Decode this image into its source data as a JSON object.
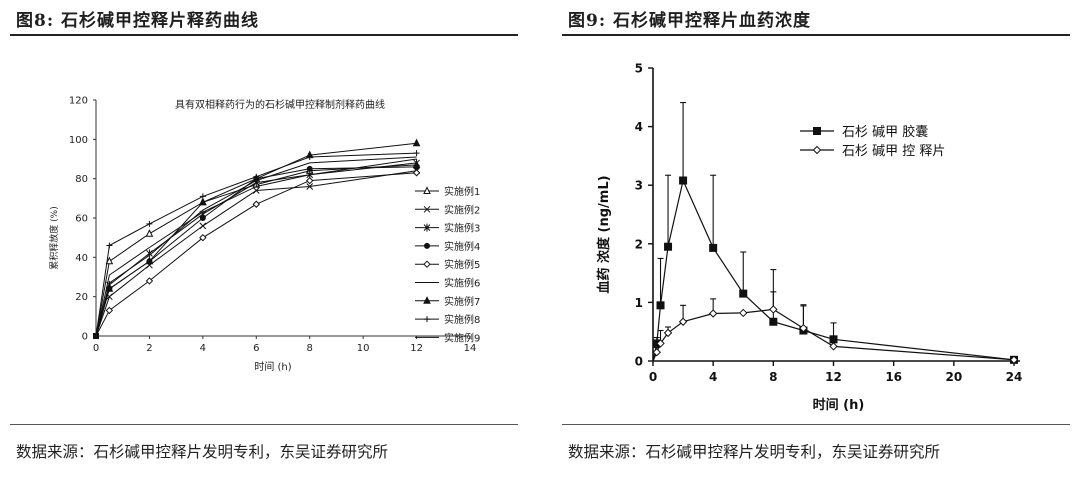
{
  "left": {
    "fig_title": "图8:  石杉碱甲控释片释药曲线",
    "source": "数据来源：石杉碱甲控释片发明专利，东吴证券研究所"
  },
  "right": {
    "fig_title": "图9:  石杉碱甲控释片血药浓度",
    "source": "数据来源：石杉碱甲控释片发明专利，东吴证券研究所"
  },
  "chart_data": [
    {
      "type": "line",
      "title": "具有双相释药行为的石杉碱甲控释制剂释药曲线",
      "xlabel": "时间 (h)",
      "ylabel": "累积释放度 (%)",
      "xlim": [
        0,
        14
      ],
      "ylim": [
        0,
        120
      ],
      "xticks": [
        "0",
        "2",
        "4",
        "6",
        "8",
        "10",
        "12",
        "14"
      ],
      "yticks": [
        "0",
        "20",
        "40",
        "60",
        "80",
        "100",
        "120"
      ],
      "x": [
        0,
        0.5,
        2,
        4,
        6,
        8,
        12
      ],
      "legend_position": "right",
      "series": [
        {
          "name": "实施例1",
          "marker": "triangle-open",
          "values": [
            0,
            38,
            52,
            68,
            77,
            84,
            87
          ]
        },
        {
          "name": "实施例2",
          "marker": "x",
          "values": [
            0,
            20,
            36,
            56,
            74,
            76,
            84
          ]
        },
        {
          "name": "实施例3",
          "marker": "star",
          "values": [
            0,
            26,
            42,
            62,
            78,
            82,
            88
          ]
        },
        {
          "name": "实施例4",
          "marker": "circle-filled",
          "values": [
            0,
            24,
            38,
            60,
            80,
            85,
            86
          ]
        },
        {
          "name": "实施例5",
          "marker": "diamond-open",
          "values": [
            0,
            13,
            28,
            50,
            67,
            79,
            83
          ]
        },
        {
          "name": "实施例6",
          "marker": "none",
          "values": [
            0,
            27,
            41,
            64,
            79,
            88,
            91
          ]
        },
        {
          "name": "实施例7",
          "marker": "triangle-filled",
          "values": [
            0,
            24,
            38,
            68,
            80,
            92,
            98
          ]
        },
        {
          "name": "实施例8",
          "marker": "plus",
          "values": [
            0,
            46,
            57,
            71,
            81,
            91,
            93
          ]
        },
        {
          "name": "实施例9",
          "marker": "none",
          "values": [
            0,
            31,
            45,
            63,
            76,
            82,
            90
          ]
        }
      ]
    },
    {
      "type": "line",
      "title": "",
      "xlabel": "时间 (h)",
      "ylabel": "血药 浓度 (ng/mL)",
      "xlim": [
        0,
        24
      ],
      "ylim": [
        0,
        5
      ],
      "xticks": [
        "0",
        "4",
        "8",
        "12",
        "16",
        "20",
        "24"
      ],
      "yticks": [
        "0",
        "1",
        "2",
        "3",
        "4",
        "5"
      ],
      "legend_position": "upper-right",
      "series": [
        {
          "name": "石杉 碱甲 胶囊",
          "marker": "square-filled",
          "x": [
            0,
            0.25,
            0.5,
            1,
            2,
            4,
            6,
            8,
            10,
            12,
            24
          ],
          "values": [
            0,
            0.3,
            0.95,
            1.95,
            3.08,
            1.93,
            1.15,
            0.67,
            0.52,
            0.37,
            0.02
          ],
          "errors": [
            0,
            0.1,
            0.8,
            1.22,
            1.33,
            1.24,
            0.71,
            0.89,
            0.42,
            0.28,
            0
          ]
        },
        {
          "name": "石杉 碱甲 控 释片",
          "marker": "diamond-open",
          "x": [
            0,
            0.25,
            0.5,
            1,
            2,
            4,
            6,
            8,
            10,
            12,
            24
          ],
          "values": [
            0,
            0.15,
            0.3,
            0.48,
            0.67,
            0.81,
            0.82,
            0.88,
            0.56,
            0.25,
            0.02
          ],
          "errors": [
            0,
            0.08,
            0.22,
            0.1,
            0.28,
            0.25,
            0,
            0.3,
            0.4,
            0.15,
            0
          ]
        }
      ]
    }
  ]
}
